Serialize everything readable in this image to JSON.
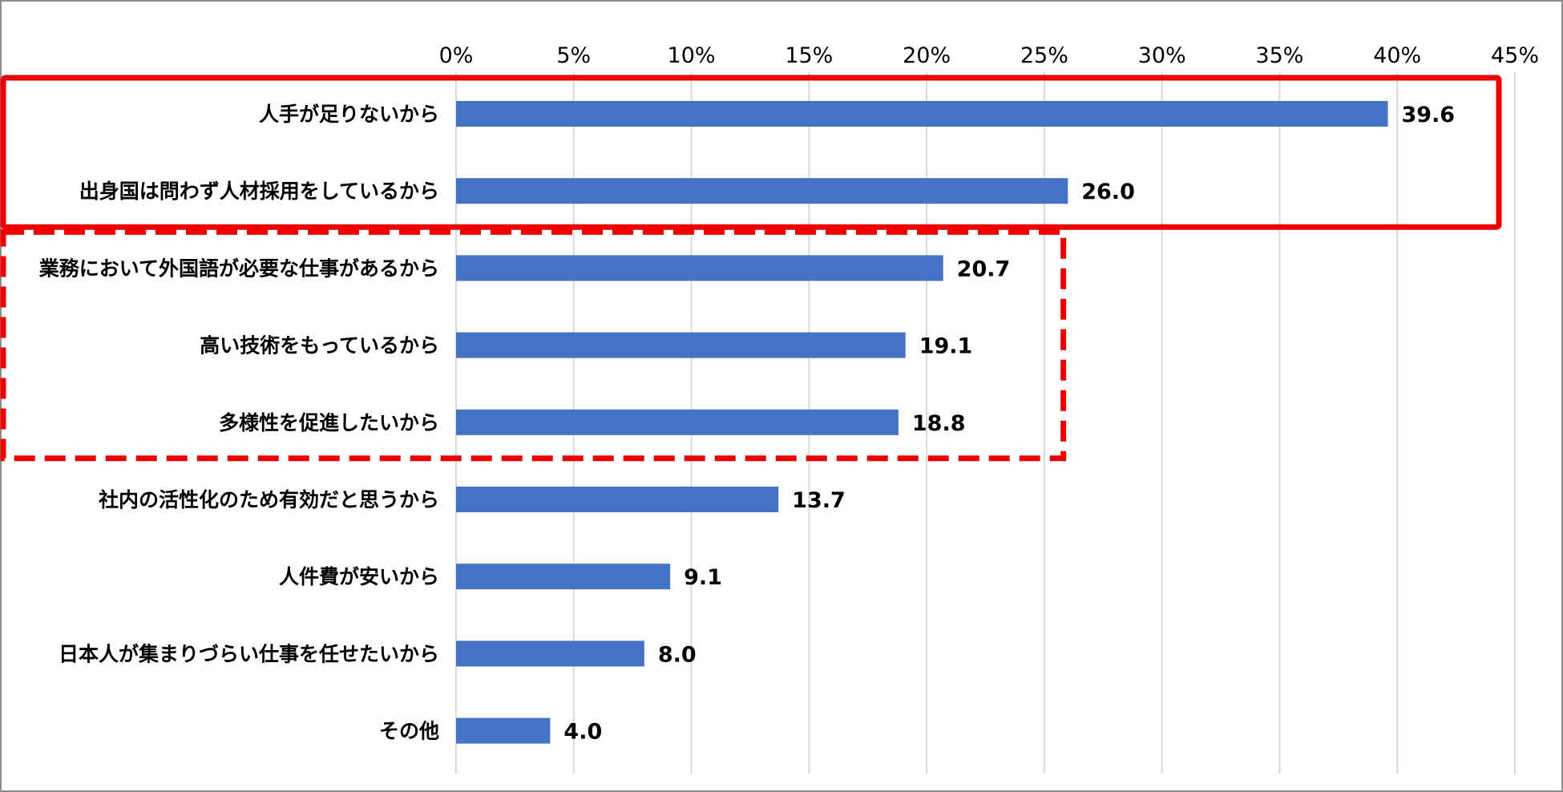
{
  "chart_data": {
    "type": "bar",
    "orientation": "horizontal",
    "categories": [
      "人手が足りないから",
      "出身国は問わず人材採用をしているから",
      "業務において外国語が必要な仕事があるから",
      "高い技術をもっているから",
      "多様性を促進したいから",
      "社内の活性化のため有効だと思うから",
      "人件費が安いから",
      "日本人が集まりづらい仕事を任せたいから",
      "その他"
    ],
    "values": [
      39.6,
      26.0,
      20.7,
      19.1,
      18.8,
      13.7,
      9.1,
      8.0,
      4.0
    ],
    "value_labels": [
      "39.6",
      "26.0",
      "20.7",
      "19.1",
      "18.8",
      "13.7",
      "9.1",
      "8.0",
      "4.0"
    ],
    "xlim": [
      0,
      45
    ],
    "x_ticks": [
      "0%",
      "5%",
      "10%",
      "15%",
      "20%",
      "25%",
      "30%",
      "35%",
      "40%",
      "45%"
    ],
    "x_axis_position": "top",
    "grid": true,
    "bar_color": "#4472c4",
    "highlight_color": "#ee0000",
    "highlights": [
      {
        "style": "solid",
        "categories": [
          0,
          1
        ]
      },
      {
        "style": "dashed",
        "categories": [
          2,
          3,
          4
        ]
      }
    ]
  }
}
